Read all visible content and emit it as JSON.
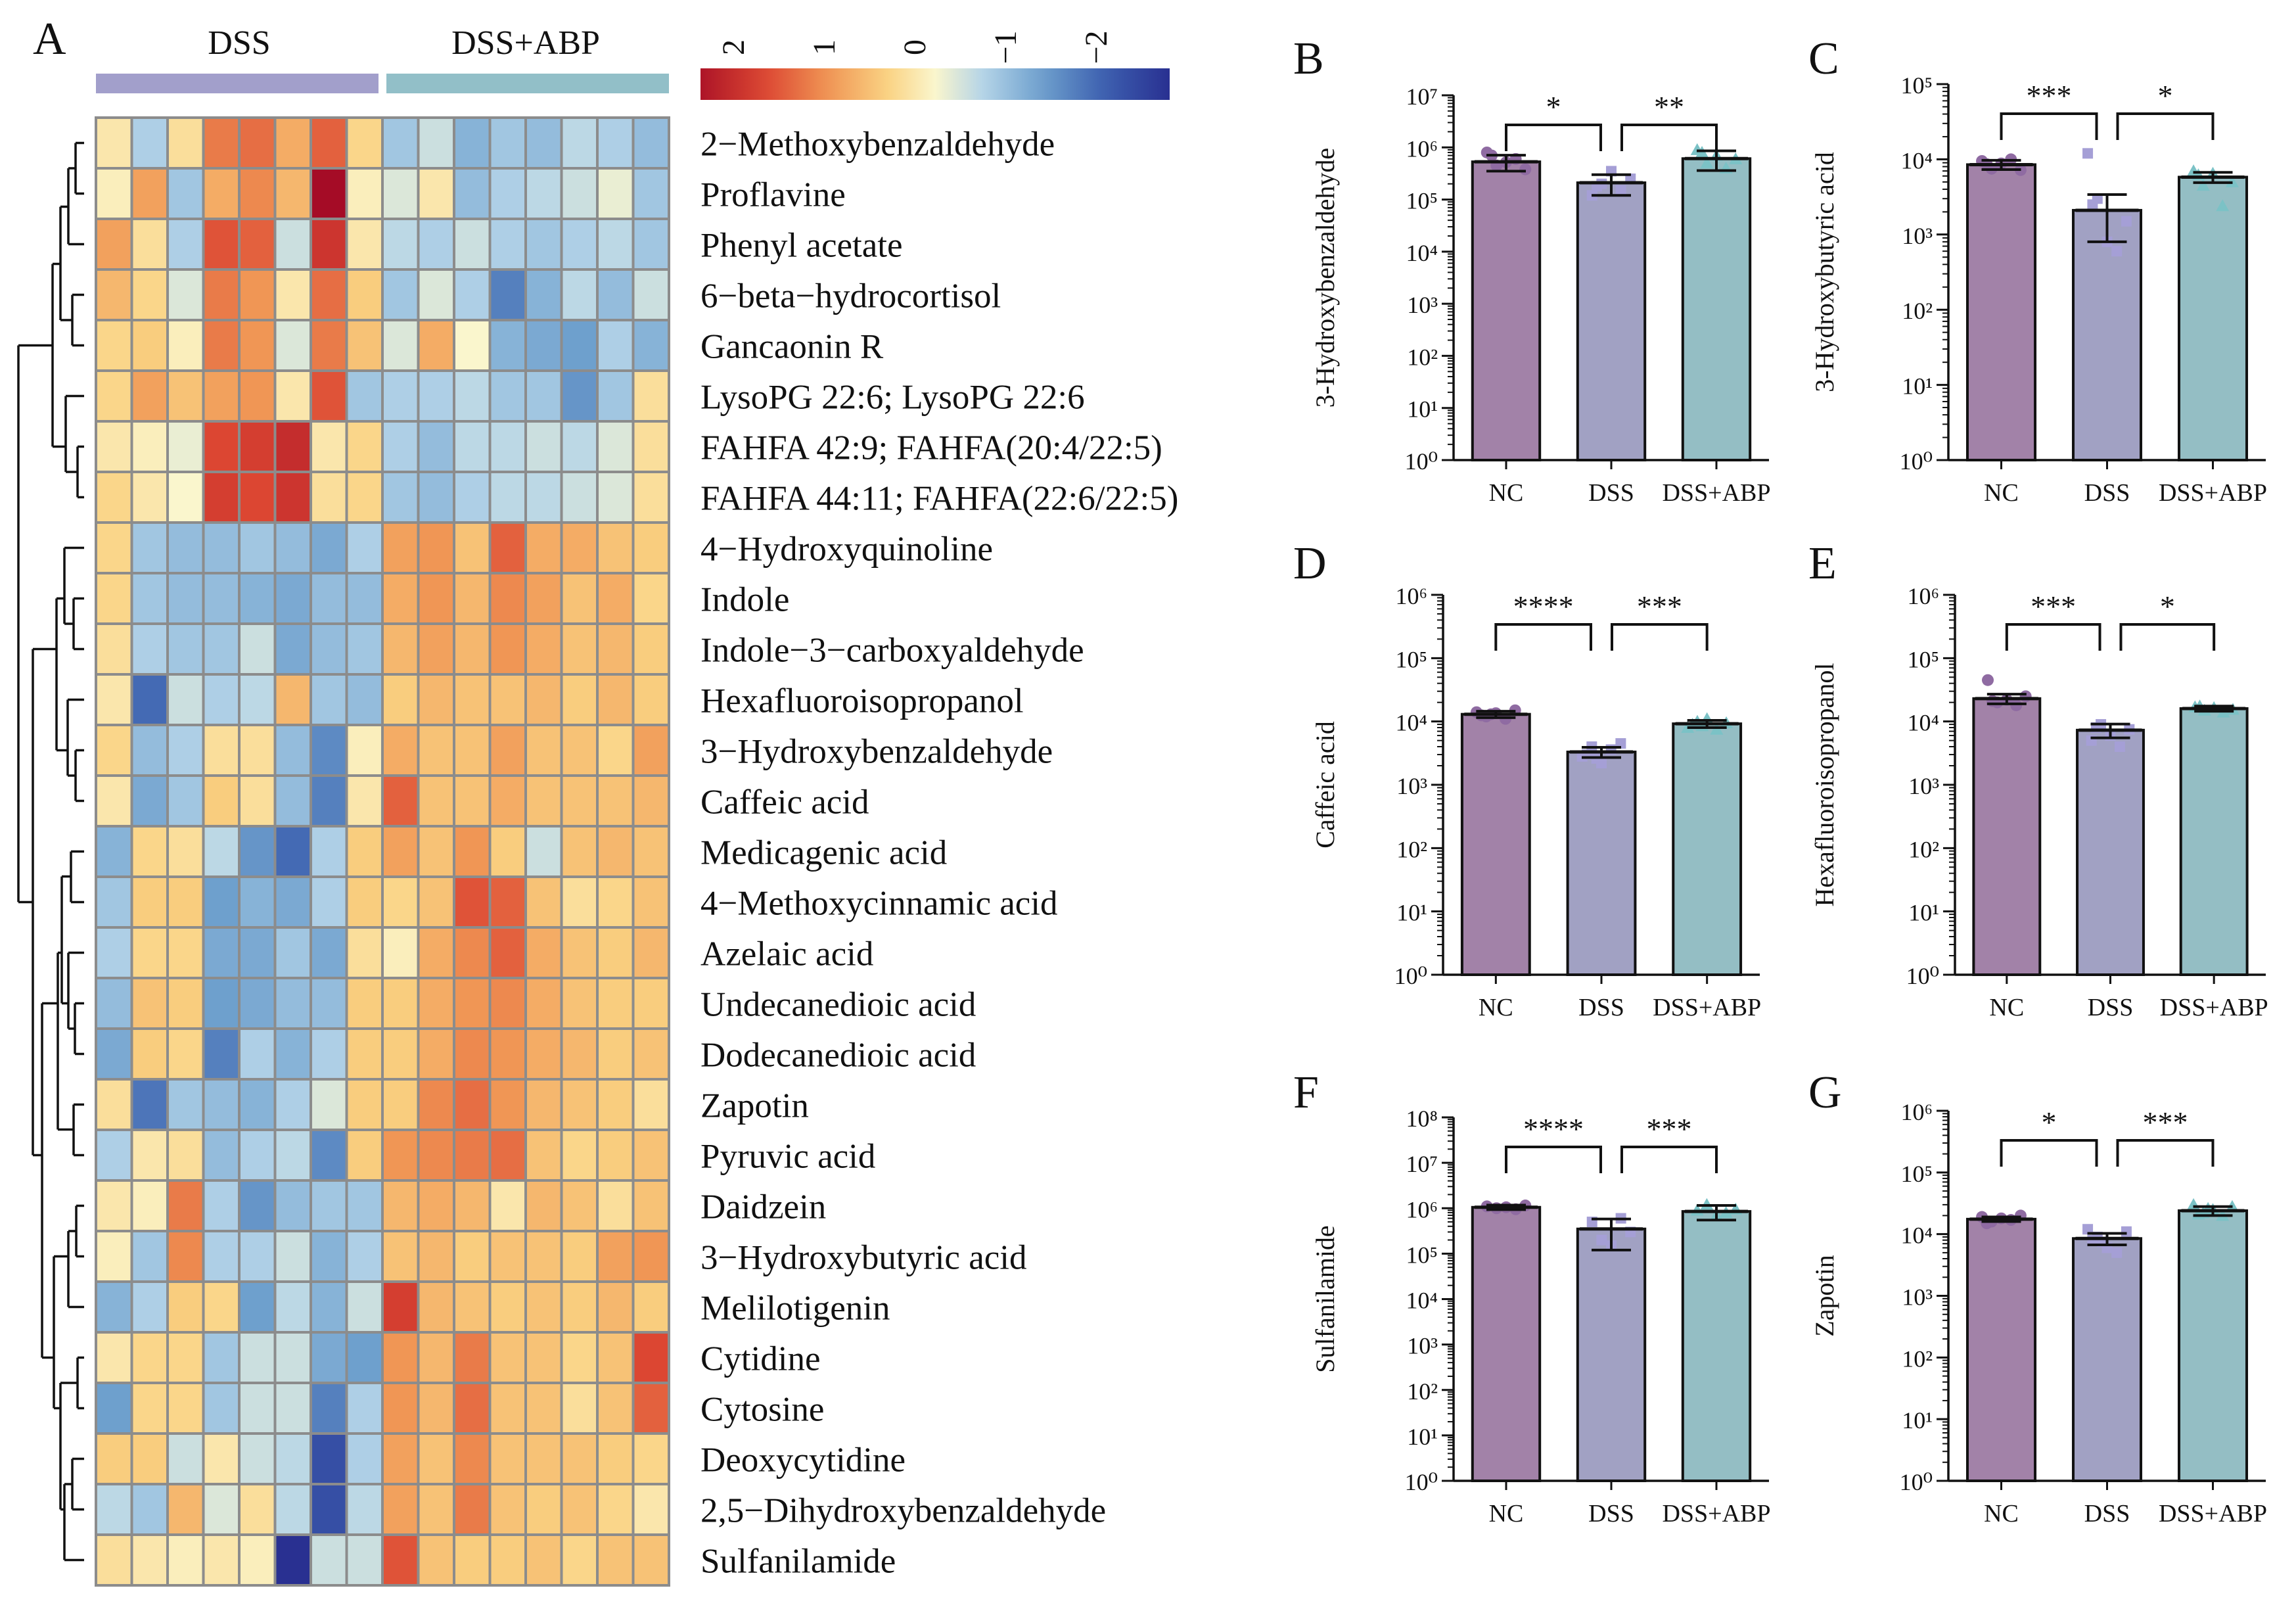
{
  "heatmap": {
    "panel_label": "A",
    "groups": [
      "DSS",
      "DSS+ABP"
    ],
    "group_colors": [
      "#a29fcb",
      "#92bfc8"
    ],
    "legend_ticks": [
      "2",
      "1",
      "0",
      "−1",
      "−2"
    ],
    "legend_values": [
      2,
      1,
      0,
      -1,
      -2
    ],
    "color_range": [
      -2,
      2
    ],
    "rows": [
      {
        "name": "2−Methoxybenzaldehyde",
        "values": [
          0.2,
          -0.5,
          0.3,
          1.2,
          1.3,
          0.8,
          1.4,
          0.4,
          -0.6,
          -0.3,
          -0.8,
          -0.6,
          -0.7,
          -0.4,
          -0.5,
          -0.7
        ]
      },
      {
        "name": "Proflavine",
        "values": [
          0.1,
          0.9,
          -0.6,
          0.8,
          1.1,
          0.7,
          2.3,
          0.1,
          -0.2,
          0.2,
          -0.7,
          -0.5,
          -0.4,
          -0.3,
          -0.1,
          -0.6
        ]
      },
      {
        "name": "Phenyl acetate",
        "values": [
          0.9,
          0.3,
          -0.5,
          1.5,
          1.4,
          -0.3,
          1.8,
          0.2,
          -0.4,
          -0.5,
          -0.3,
          -0.5,
          -0.6,
          -0.5,
          -0.4,
          -0.6
        ]
      },
      {
        "name": "6−beta−hydrocortisol",
        "values": [
          0.7,
          0.4,
          -0.2,
          1.2,
          1.0,
          0.2,
          1.3,
          0.5,
          -0.6,
          -0.2,
          -0.5,
          -1.3,
          -0.8,
          -0.4,
          -0.7,
          -0.3
        ]
      },
      {
        "name": "Gancaonin R",
        "values": [
          0.4,
          0.5,
          0.1,
          1.2,
          1.0,
          -0.2,
          1.2,
          0.6,
          -0.2,
          0.8,
          0.0,
          -0.8,
          -0.9,
          -1.0,
          -0.5,
          -0.8
        ]
      },
      {
        "name": "LysoPG 22:6; LysoPG 22:6",
        "values": [
          0.4,
          0.9,
          0.6,
          0.9,
          1.0,
          0.2,
          1.5,
          -0.6,
          -0.5,
          -0.5,
          -0.4,
          -0.6,
          -0.6,
          -1.1,
          -0.6,
          0.3
        ]
      },
      {
        "name": "FAHFA 42:9; FAHFA(20:4/22:5)",
        "values": [
          0.2,
          0.1,
          -0.1,
          1.6,
          1.7,
          1.9,
          0.2,
          0.4,
          -0.5,
          -0.7,
          -0.4,
          -0.4,
          -0.3,
          -0.4,
          -0.2,
          0.3
        ]
      },
      {
        "name": "FAHFA 44:11; FAHFA(22:6/22:5)",
        "values": [
          0.4,
          0.2,
          0.0,
          1.7,
          1.6,
          1.8,
          0.3,
          0.4,
          -0.6,
          -0.7,
          -0.5,
          -0.4,
          -0.4,
          -0.3,
          -0.2,
          0.3
        ]
      },
      {
        "name": "4−Hydroxyquinoline",
        "values": [
          0.4,
          -0.6,
          -0.7,
          -0.7,
          -0.6,
          -0.7,
          -0.9,
          -0.5,
          0.9,
          1.0,
          0.6,
          1.4,
          0.8,
          0.8,
          0.6,
          0.5
        ]
      },
      {
        "name": "Indole",
        "values": [
          0.4,
          -0.6,
          -0.7,
          -0.7,
          -0.8,
          -0.9,
          -0.7,
          -0.7,
          0.8,
          1.0,
          0.7,
          1.1,
          0.9,
          0.6,
          0.8,
          0.4
        ]
      },
      {
        "name": "Indole−3−carboxyaldehyde",
        "values": [
          0.3,
          -0.5,
          -0.6,
          -0.6,
          -0.3,
          -0.9,
          -0.7,
          -0.6,
          0.7,
          0.9,
          0.7,
          1.0,
          0.8,
          0.6,
          0.7,
          0.5
        ]
      },
      {
        "name": "Hexafluoroisopropanol",
        "values": [
          0.2,
          -1.5,
          -0.3,
          -0.5,
          -0.4,
          0.7,
          -0.6,
          -0.7,
          0.5,
          0.7,
          0.6,
          0.6,
          0.7,
          0.5,
          0.7,
          0.5
        ]
      },
      {
        "name": "3−Hydroxybenzaldehyde",
        "values": [
          0.4,
          -0.7,
          -0.5,
          0.3,
          0.3,
          -0.7,
          -1.2,
          0.1,
          0.8,
          0.6,
          0.6,
          0.9,
          0.6,
          0.6,
          0.4,
          0.9
        ]
      },
      {
        "name": "Caffeic acid",
        "values": [
          0.2,
          -0.9,
          -0.6,
          0.5,
          0.3,
          -0.7,
          -1.3,
          0.2,
          1.4,
          0.6,
          0.6,
          0.8,
          0.6,
          0.6,
          0.6,
          0.7
        ]
      },
      {
        "name": "Medicagenic acid",
        "values": [
          -0.8,
          0.4,
          0.3,
          -0.4,
          -1.1,
          -1.5,
          -0.5,
          0.5,
          0.9,
          0.6,
          1.0,
          0.5,
          -0.3,
          0.6,
          0.7,
          0.6
        ]
      },
      {
        "name": "4−Methoxycinnamic acid",
        "values": [
          -0.6,
          0.5,
          0.5,
          -1.0,
          -0.8,
          -0.9,
          -0.5,
          0.5,
          0.4,
          0.6,
          1.5,
          1.4,
          0.6,
          0.3,
          0.4,
          0.6
        ]
      },
      {
        "name": "Azelaic acid",
        "values": [
          -0.5,
          0.4,
          0.4,
          -0.9,
          -0.9,
          -0.6,
          -0.9,
          0.3,
          0.1,
          0.8,
          1.1,
          1.4,
          0.8,
          0.6,
          0.5,
          0.7
        ]
      },
      {
        "name": "Undecanedioic acid",
        "values": [
          -0.7,
          0.6,
          0.5,
          -1.0,
          -0.9,
          -0.7,
          -0.7,
          0.5,
          0.5,
          0.8,
          1.0,
          1.1,
          0.8,
          0.6,
          0.5,
          0.5
        ]
      },
      {
        "name": "Dodecanedioic acid",
        "values": [
          -0.9,
          0.5,
          0.4,
          -1.3,
          -0.5,
          -0.8,
          -0.5,
          0.5,
          0.5,
          0.8,
          1.1,
          1.0,
          0.8,
          0.7,
          0.5,
          0.6
        ]
      },
      {
        "name": "Zapotin",
        "values": [
          0.3,
          -1.4,
          -0.6,
          -0.7,
          -0.8,
          -0.5,
          -0.2,
          0.5,
          0.5,
          1.1,
          1.3,
          1.0,
          0.7,
          0.6,
          0.5,
          0.3
        ]
      },
      {
        "name": "Pyruvic acid",
        "values": [
          -0.5,
          0.2,
          0.3,
          -0.7,
          -0.5,
          -0.4,
          -1.2,
          0.5,
          1.0,
          1.1,
          1.2,
          1.3,
          0.6,
          0.4,
          0.5,
          0.6
        ]
      },
      {
        "name": "Daidzein",
        "values": [
          0.2,
          0.1,
          1.2,
          -0.5,
          -1.1,
          -0.7,
          -0.6,
          -0.6,
          0.7,
          0.8,
          0.7,
          0.2,
          0.7,
          0.6,
          0.3,
          0.6
        ]
      },
      {
        "name": "3−Hydroxybutyric acid",
        "values": [
          0.1,
          -0.6,
          1.1,
          -0.5,
          -0.5,
          -0.3,
          -0.8,
          -0.5,
          0.6,
          0.7,
          0.5,
          0.6,
          0.6,
          0.5,
          0.9,
          1.0
        ]
      },
      {
        "name": "Melilotigenin",
        "values": [
          -0.8,
          -0.5,
          0.5,
          0.4,
          -1.0,
          -0.4,
          -0.8,
          -0.3,
          1.7,
          0.7,
          0.6,
          0.5,
          0.6,
          0.5,
          0.7,
          0.5
        ]
      },
      {
        "name": "Cytidine",
        "values": [
          0.2,
          0.4,
          0.4,
          -0.6,
          -0.3,
          -0.3,
          -0.9,
          -1.0,
          1.0,
          0.7,
          1.2,
          0.6,
          0.6,
          0.4,
          0.6,
          1.6
        ]
      },
      {
        "name": "Cytosine",
        "values": [
          -1.0,
          0.4,
          0.4,
          -0.6,
          -0.3,
          -0.3,
          -1.3,
          -0.5,
          1.0,
          0.7,
          1.3,
          0.6,
          0.6,
          0.3,
          0.6,
          1.4
        ]
      },
      {
        "name": "Deoxycytidine",
        "values": [
          0.5,
          0.5,
          -0.3,
          0.2,
          -0.3,
          -0.4,
          -1.8,
          -0.5,
          0.9,
          0.6,
          1.1,
          0.6,
          0.6,
          0.6,
          0.5,
          0.4
        ]
      },
      {
        "name": "2,5−Dihydroxybenzaldehyde",
        "values": [
          -0.4,
          -0.6,
          0.7,
          -0.2,
          0.3,
          -0.4,
          -1.8,
          -0.4,
          0.9,
          0.6,
          1.2,
          0.6,
          0.5,
          0.6,
          0.4,
          0.2
        ]
      },
      {
        "name": "Sulfanilamide",
        "values": [
          0.3,
          0.2,
          0.1,
          0.2,
          0.1,
          -2.2,
          -0.3,
          -0.3,
          1.5,
          0.6,
          0.5,
          0.5,
          0.6,
          0.4,
          0.6,
          0.6
        ]
      }
    ]
  },
  "chart_data": [
    {
      "panel": "B",
      "type": "bar",
      "title": "",
      "xlabel": "",
      "ylabel": "3-Hydroxybenzaldehyde",
      "yscale": "log",
      "ylim_exp": [
        0,
        7
      ],
      "categories": [
        "NC",
        "DSS",
        "DSS+ABP"
      ],
      "values": [
        530000,
        210000,
        610000
      ],
      "error": [
        180000,
        90000,
        250000
      ],
      "points": [
        [
          800000,
          450000,
          520000,
          600000,
          380000,
          700000
        ],
        [
          120000,
          200000,
          350000,
          150000,
          250000,
          180000
        ],
        [
          900000,
          500000,
          700000,
          400000,
          600000,
          800000
        ]
      ],
      "significance": [
        {
          "groups": [
            "NC",
            "DSS"
          ],
          "label": "*"
        },
        {
          "groups": [
            "DSS",
            "DSS+ABP"
          ],
          "label": "**"
        }
      ]
    },
    {
      "panel": "C",
      "type": "bar",
      "title": "",
      "xlabel": "",
      "ylabel": "3-Hydroxybutyric acid",
      "yscale": "log",
      "ylim_exp": [
        0,
        5
      ],
      "categories": [
        "NC",
        "DSS",
        "DSS+ABP"
      ],
      "values": [
        8500,
        2100,
        5800
      ],
      "error": [
        1200,
        1300,
        900
      ],
      "points": [
        [
          9500,
          7500,
          8800,
          10000,
          7200,
          8600
        ],
        [
          12000,
          3000,
          800,
          600,
          1500,
          2500
        ],
        [
          7000,
          4500,
          6500,
          2400,
          5000,
          6200
        ]
      ],
      "significance": [
        {
          "groups": [
            "NC",
            "DSS"
          ],
          "label": "***"
        },
        {
          "groups": [
            "DSS",
            "DSS+ABP"
          ],
          "label": "*"
        }
      ]
    },
    {
      "panel": "D",
      "type": "bar",
      "title": "",
      "xlabel": "",
      "ylabel": "Caffeic acid",
      "yscale": "log",
      "ylim_exp": [
        0,
        6
      ],
      "categories": [
        "NC",
        "DSS",
        "DSS+ABP"
      ],
      "values": [
        13000,
        3300,
        9200
      ],
      "error": [
        1500,
        600,
        1200
      ],
      "points": [
        [
          14000,
          12000,
          13500,
          11000,
          15000,
          12500,
          13000
        ],
        [
          2800,
          4000,
          2200,
          3600,
          4500,
          3000,
          2600
        ],
        [
          8000,
          10000,
          11000,
          7500,
          9500,
          9000,
          8500
        ]
      ],
      "significance": [
        {
          "groups": [
            "NC",
            "DSS"
          ],
          "label": "****"
        },
        {
          "groups": [
            "DSS",
            "DSS+ABP"
          ],
          "label": "***"
        }
      ]
    },
    {
      "panel": "E",
      "type": "bar",
      "title": "",
      "xlabel": "",
      "ylabel": "Hexafluoroisopropanol",
      "yscale": "log",
      "ylim_exp": [
        0,
        6
      ],
      "categories": [
        "NC",
        "DSS",
        "DSS+ABP"
      ],
      "values": [
        23000,
        7300,
        16000
      ],
      "error": [
        4000,
        1800,
        1500
      ],
      "points": [
        [
          45000,
          20000,
          22000,
          18000,
          25000,
          21000
        ],
        [
          5000,
          9000,
          6000,
          4000,
          7500,
          8000
        ],
        [
          17000,
          15000,
          16500,
          14000,
          15500,
          17500
        ]
      ],
      "significance": [
        {
          "groups": [
            "NC",
            "DSS"
          ],
          "label": "***"
        },
        {
          "groups": [
            "DSS",
            "DSS+ABP"
          ],
          "label": "*"
        }
      ]
    },
    {
      "panel": "F",
      "type": "bar",
      "title": "",
      "xlabel": "",
      "ylabel": "Sulfanilamide",
      "yscale": "log",
      "ylim_exp": [
        0,
        8
      ],
      "categories": [
        "NC",
        "DSS",
        "DSS+ABP"
      ],
      "values": [
        1050000,
        350000,
        850000
      ],
      "error": [
        120000,
        230000,
        300000
      ],
      "points": [
        [
          1100000,
          1000000,
          1050000,
          950000,
          1150000
        ],
        [
          500000,
          200000,
          150000,
          600000,
          300000
        ],
        [
          900000,
          1200000,
          700000,
          800000,
          950000
        ]
      ],
      "significance": [
        {
          "groups": [
            "NC",
            "DSS"
          ],
          "label": "****"
        },
        {
          "groups": [
            "DSS",
            "DSS+ABP"
          ],
          "label": "***"
        }
      ]
    },
    {
      "panel": "G",
      "type": "bar",
      "title": "",
      "xlabel": "",
      "ylabel": "Zapotin",
      "yscale": "log",
      "ylim_exp": [
        0,
        6
      ],
      "categories": [
        "NC",
        "DSS",
        "DSS+ABP"
      ],
      "values": [
        17500,
        8500,
        24000
      ],
      "error": [
        1500,
        1800,
        4000
      ],
      "points": [
        [
          19000,
          16000,
          18000,
          17000,
          20000,
          15000
        ],
        [
          12000,
          9000,
          6000,
          5000,
          11000,
          8000,
          7500
        ],
        [
          30000,
          22000,
          25000,
          20000,
          28000,
          21000,
          26000
        ]
      ],
      "significance": [
        {
          "groups": [
            "NC",
            "DSS"
          ],
          "label": "*"
        },
        {
          "groups": [
            "DSS",
            "DSS+ABP"
          ],
          "label": "***"
        }
      ]
    }
  ],
  "bar_colors": [
    "#a282a8",
    "#a1a1c3",
    "#94bec4"
  ],
  "point_colors": [
    "#8f6ba2",
    "#a59fd6",
    "#7bc2c6"
  ]
}
